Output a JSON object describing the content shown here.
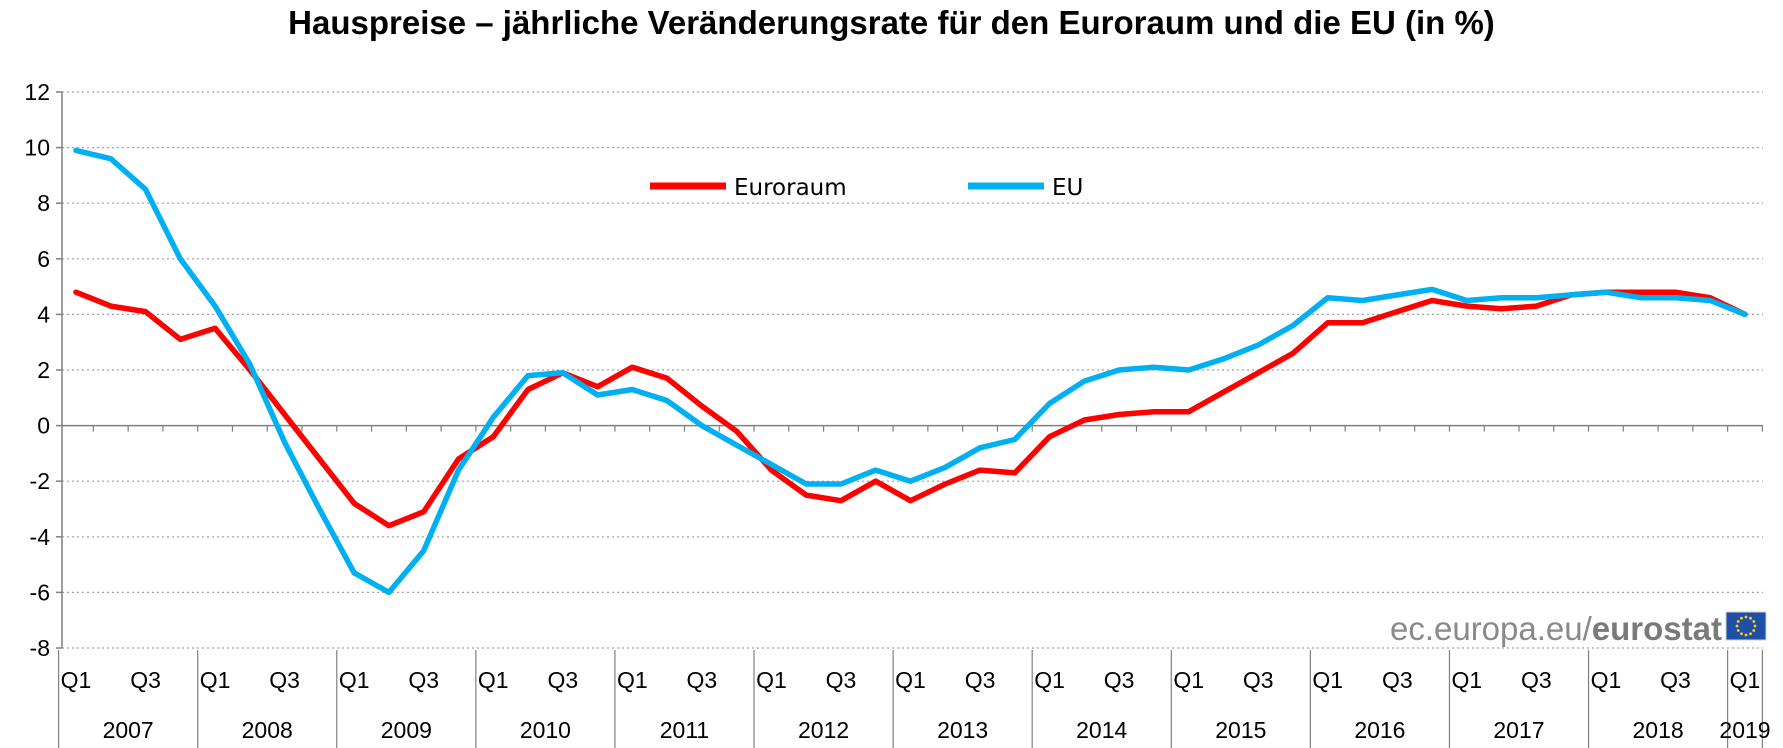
{
  "chart_data": {
    "type": "line",
    "title": "Hauspreise – jährliche Veränderungsrate für den Euroraum und die EU (in %)",
    "ylim": [
      -8,
      12
    ],
    "yticks": [
      "-8",
      "-6",
      "-4",
      "-2",
      "0",
      "2",
      "4",
      "6",
      "8",
      "10",
      "12"
    ],
    "grid": true,
    "legend_position": "top-center",
    "x": [
      "2007 Q1",
      "2007 Q2",
      "2007 Q3",
      "2007 Q4",
      "2008 Q1",
      "2008 Q2",
      "2008 Q3",
      "2008 Q4",
      "2009 Q1",
      "2009 Q2",
      "2009 Q3",
      "2009 Q4",
      "2010 Q1",
      "2010 Q2",
      "2010 Q3",
      "2010 Q4",
      "2011 Q1",
      "2011 Q2",
      "2011 Q3",
      "2011 Q4",
      "2012 Q1",
      "2012 Q2",
      "2012 Q3",
      "2012 Q4",
      "2013 Q1",
      "2013 Q2",
      "2013 Q3",
      "2013 Q4",
      "2014 Q1",
      "2014 Q2",
      "2014 Q3",
      "2014 Q4",
      "2015 Q1",
      "2015 Q2",
      "2015 Q3",
      "2015 Q4",
      "2016 Q1",
      "2016 Q2",
      "2016 Q3",
      "2016 Q4",
      "2017 Q1",
      "2017 Q2",
      "2017 Q3",
      "2017 Q4",
      "2018 Q1",
      "2018 Q2",
      "2018 Q3",
      "2018 Q4",
      "2019 Q1"
    ],
    "quarter_labels": [
      "Q1",
      "Q3"
    ],
    "years": [
      "2007",
      "2008",
      "2009",
      "2010",
      "2011",
      "2012",
      "2013",
      "2014",
      "2015",
      "2016",
      "2017",
      "2018",
      "2019"
    ],
    "series": [
      {
        "name": "Euroraum",
        "color": "#ff0000",
        "values": [
          4.8,
          4.3,
          4.1,
          3.1,
          3.5,
          2.0,
          0.4,
          -1.2,
          -2.8,
          -3.6,
          -3.1,
          -1.2,
          -0.4,
          1.3,
          1.9,
          1.4,
          2.1,
          1.7,
          0.7,
          -0.2,
          -1.6,
          -2.5,
          -2.7,
          -2.0,
          -2.7,
          -2.1,
          -1.6,
          -1.7,
          -0.4,
          0.2,
          0.4,
          0.5,
          0.5,
          1.2,
          1.9,
          2.6,
          3.7,
          3.7,
          4.1,
          4.5,
          4.3,
          4.2,
          4.3,
          4.7,
          4.8,
          4.8,
          4.8,
          4.6,
          4.0
        ]
      },
      {
        "name": "EU",
        "color": "#00b0f0",
        "values": [
          9.9,
          9.6,
          8.5,
          6.0,
          4.3,
          2.2,
          -0.6,
          -3.0,
          -5.3,
          -6.0,
          -4.5,
          -1.6,
          0.3,
          1.8,
          1.9,
          1.1,
          1.3,
          0.9,
          0.0,
          -0.7,
          -1.4,
          -2.1,
          -2.1,
          -1.6,
          -2.0,
          -1.5,
          -0.8,
          -0.5,
          0.8,
          1.6,
          2.0,
          2.1,
          2.0,
          2.4,
          2.9,
          3.6,
          4.6,
          4.5,
          4.7,
          4.9,
          4.5,
          4.6,
          4.6,
          4.7,
          4.8,
          4.6,
          4.6,
          4.5,
          4.0
        ]
      }
    ]
  },
  "watermark": {
    "text_plain": "ec.europa.eu/",
    "text_bold": "eurostat"
  },
  "colors": {
    "grid": "#a0a0a0",
    "axis": "#808080",
    "flag_blue": "#1f4fa8",
    "flag_star": "#ffd400"
  }
}
